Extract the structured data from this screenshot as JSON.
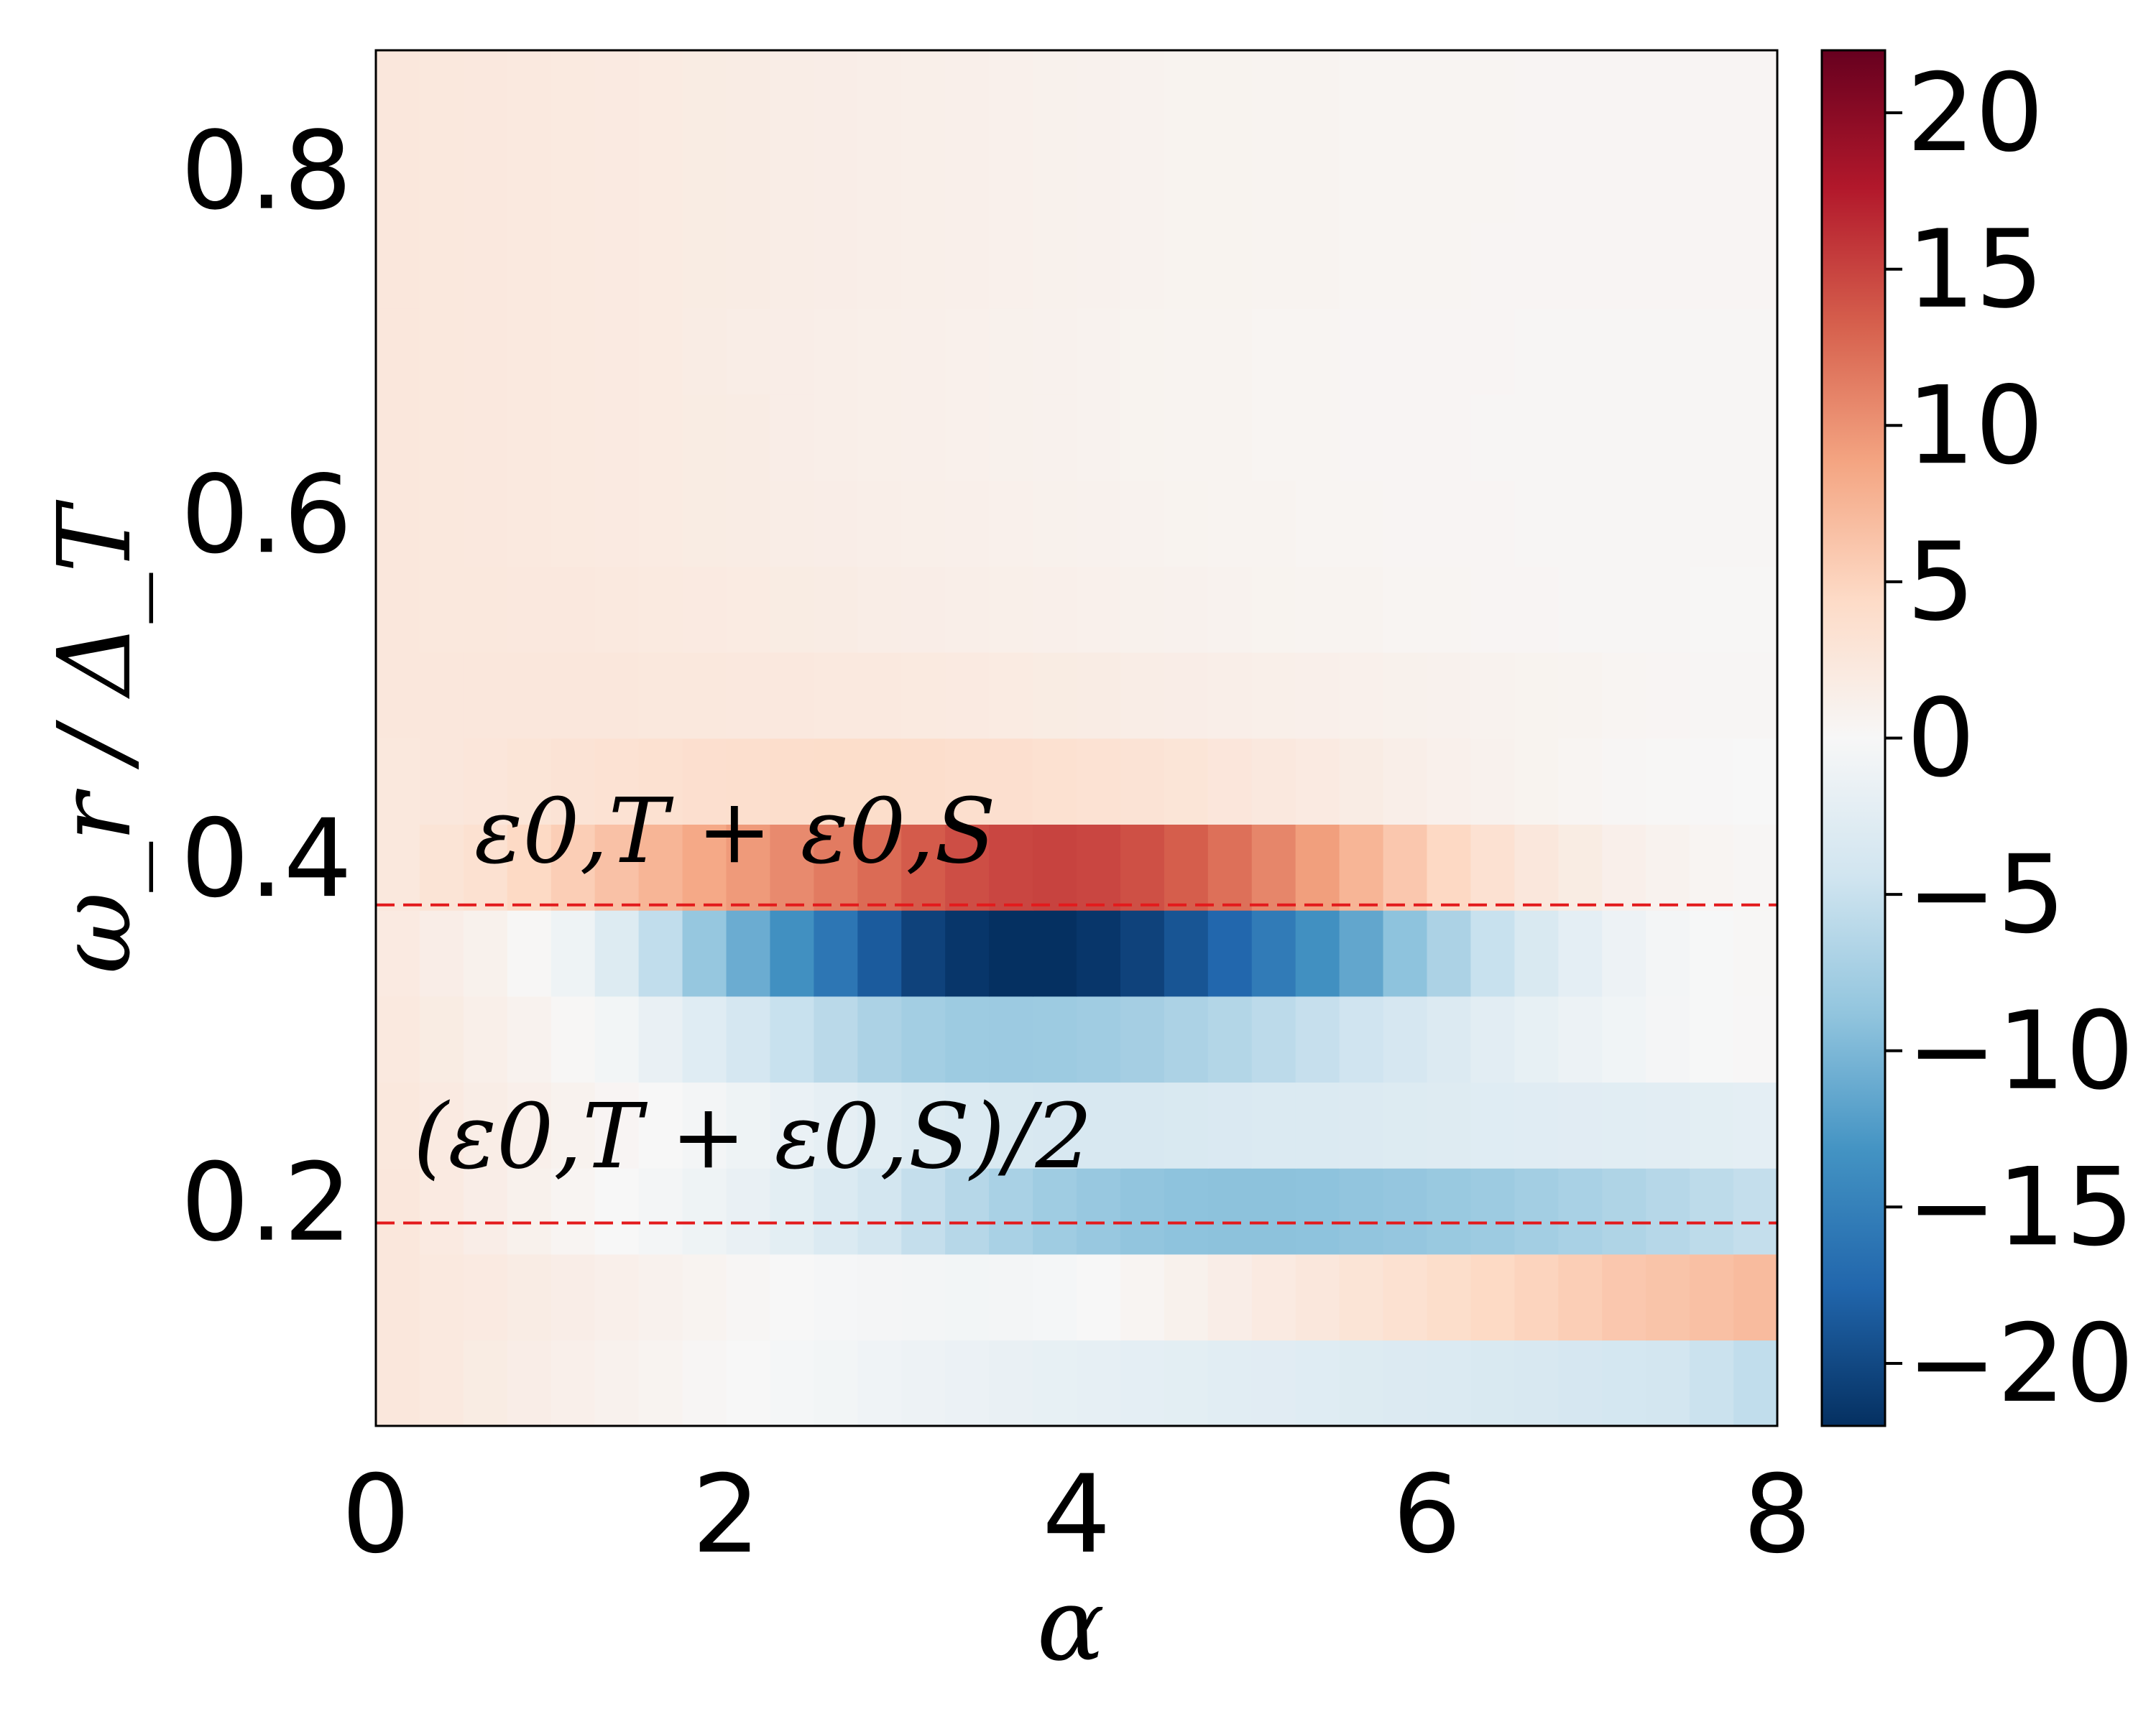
{
  "chart_data": {
    "type": "heatmap",
    "title": "",
    "xlabel": "α",
    "ylabel": "ω_r / Δ_T",
    "xlim": [
      0,
      8
    ],
    "ylim": [
      0.07,
      0.87
    ],
    "x_ticks": [
      "0",
      "2",
      "4",
      "6",
      "8"
    ],
    "y_ticks": [
      "0.2",
      "0.4",
      "0.6",
      "0.8"
    ],
    "colorbar": {
      "colormap": "RdBu_r",
      "range": [
        -22,
        22
      ],
      "ticks": [
        "−20",
        "−15",
        "−10",
        "−5",
        "0",
        "5",
        "10",
        "15",
        "20"
      ]
    },
    "grid": false,
    "x": [
      0.125,
      0.375,
      0.625,
      0.875,
      1.125,
      1.375,
      1.625,
      1.875,
      2.125,
      2.375,
      2.625,
      2.875,
      3.125,
      3.375,
      3.625,
      3.875,
      4.125,
      4.375,
      4.625,
      4.875,
      5.125,
      5.375,
      5.625,
      5.875,
      6.125,
      6.375,
      6.625,
      6.875,
      7.125,
      7.375,
      7.625,
      7.875
    ],
    "y": [
      0.095,
      0.145,
      0.195,
      0.245,
      0.295,
      0.345,
      0.395,
      0.445,
      0.495,
      0.545,
      0.595,
      0.645,
      0.695,
      0.745,
      0.795,
      0.845
    ],
    "z": [
      [
        2.5,
        2.2,
        1.8,
        1.5,
        1.2,
        0.9,
        0.6,
        0.3,
        0,
        -0.3,
        -0.6,
        -0.9,
        -1.2,
        -1.4,
        -1.6,
        -1.8,
        -2,
        -2.2,
        -2.3,
        -2.5,
        -2.6,
        -2.8,
        -3,
        -3.1,
        -3.3,
        -3.5,
        -3.6,
        -3.8,
        -4,
        -4.2,
        -4.8,
        -5.5
      ],
      [
        2.5,
        2.2,
        2,
        1.7,
        1.5,
        1.2,
        0.9,
        0.6,
        0.3,
        0,
        -0.2,
        -0.4,
        -0.5,
        -0.6,
        -0.5,
        -0.3,
        0,
        0.5,
        1,
        1.5,
        2,
        2.5,
        3,
        3.5,
        4,
        4.5,
        5,
        5.5,
        6,
        6.3,
        6.6,
        7
      ],
      [
        2.5,
        2,
        1.5,
        1,
        0.5,
        0,
        -0.5,
        -1,
        -1.6,
        -2.3,
        -3.2,
        -4.2,
        -5.3,
        -6.3,
        -7.2,
        -7.9,
        -8.4,
        -8.8,
        -9,
        -9.1,
        -9.1,
        -9,
        -8.8,
        -8.6,
        -8.3,
        -8,
        -7.6,
        -7.2,
        -6.8,
        -6.3,
        -5.8,
        -5.3
      ],
      [
        2.4,
        2,
        1.6,
        1.2,
        0.8,
        0.4,
        0,
        -0.5,
        -1,
        -1.5,
        -2,
        -2.5,
        -3,
        -3.3,
        -3.5,
        -3.6,
        -3.6,
        -3.6,
        -3.5,
        -3.4,
        -3.3,
        -3.2,
        -3.1,
        -3,
        -2.9,
        -2.8,
        -2.7,
        -2.6,
        -2.5,
        -2.4,
        -2.3,
        -2.2
      ],
      [
        2.2,
        1.8,
        1.3,
        0.8,
        0.2,
        -0.6,
        -1.6,
        -2.8,
        -3.9,
        -5,
        -6,
        -7,
        -7.6,
        -8,
        -8.1,
        -8,
        -7.8,
        -7.5,
        -7,
        -6.5,
        -5.9,
        -5.2,
        -4.5,
        -3.8,
        -3.1,
        -2.4,
        -1.8,
        -1.3,
        -0.8,
        -0.4,
        -0.1,
        0.1
      ],
      [
        2,
        1.5,
        1,
        0.2,
        -1,
        -3,
        -5.5,
        -8.5,
        -11,
        -13.5,
        -16,
        -18.5,
        -20.5,
        -21.5,
        -22,
        -22,
        -21.5,
        -20.5,
        -19,
        -17.5,
        -15.5,
        -13.5,
        -11.5,
        -9,
        -7,
        -5,
        -3.5,
        -2.2,
        -1.2,
        -0.5,
        -0.1,
        0.2
      ],
      [
        2.4,
        3,
        3.5,
        4.5,
        5.5,
        6.5,
        7.5,
        8.5,
        9.5,
        10.5,
        11.5,
        12.5,
        13.5,
        14.3,
        14.8,
        15,
        14.8,
        14.2,
        13.3,
        12.2,
        10.8,
        9.2,
        7.5,
        6,
        4.6,
        3.4,
        2.5,
        1.8,
        1.2,
        0.8,
        0.5,
        0.3
      ],
      [
        2.4,
        2.5,
        2.7,
        2.9,
        3.1,
        3.3,
        3.5,
        3.7,
        3.8,
        3.9,
        4,
        4,
        3.9,
        3.8,
        3.7,
        3.5,
        3.3,
        3.1,
        2.9,
        2.6,
        2.3,
        2,
        1.7,
        1.4,
        1.1,
        0.9,
        0.7,
        0.5,
        0.3,
        0.2,
        0.1,
        0
      ],
      [
        2.5,
        2.5,
        2.5,
        2.5,
        2.5,
        2.5,
        2.4,
        2.4,
        2.3,
        2.3,
        2.2,
        2.2,
        2.1,
        2,
        1.9,
        1.8,
        1.7,
        1.6,
        1.5,
        1.4,
        1.3,
        1.2,
        1.1,
        1,
        0.9,
        0.8,
        0.7,
        0.6,
        0.5,
        0.4,
        0.3,
        0.3
      ],
      [
        2.5,
        2.4,
        2.4,
        2.3,
        2.3,
        2.2,
        2.1,
        2,
        1.9,
        1.8,
        1.7,
        1.6,
        1.5,
        1.4,
        1.3,
        1.2,
        1.1,
        1,
        0.9,
        0.8,
        0.7,
        0.6,
        0.6,
        0.5,
        0.5,
        0.4,
        0.4,
        0.3,
        0.3,
        0.3,
        0.2,
        0.2
      ],
      [
        2.5,
        2.4,
        2.3,
        2.2,
        2.1,
        2,
        1.9,
        1.8,
        1.7,
        1.6,
        1.5,
        1.4,
        1.3,
        1.2,
        1.1,
        1,
        0.9,
        0.8,
        0.7,
        0.6,
        0.6,
        0.5,
        0.5,
        0.4,
        0.4,
        0.4,
        0.3,
        0.3,
        0.3,
        0.3,
        0.3,
        0.3
      ],
      [
        2.5,
        2.4,
        2.3,
        2.2,
        2.1,
        2,
        1.9,
        1.8,
        1.7,
        1.5,
        1.4,
        1.3,
        1.2,
        1.1,
        1,
        0.9,
        0.8,
        0.7,
        0.6,
        0.6,
        0.5,
        0.5,
        0.4,
        0.4,
        0.4,
        0.3,
        0.3,
        0.3,
        0.3,
        0.3,
        0.3,
        0.3
      ],
      [
        2.5,
        2.4,
        2.3,
        2.2,
        2.1,
        2,
        1.9,
        1.7,
        1.6,
        1.5,
        1.4,
        1.3,
        1.2,
        1.1,
        1,
        0.9,
        0.8,
        0.7,
        0.6,
        0.6,
        0.5,
        0.5,
        0.4,
        0.4,
        0.4,
        0.4,
        0.3,
        0.3,
        0.3,
        0.3,
        0.3,
        0.3
      ],
      [
        2.5,
        2.4,
        2.3,
        2.2,
        2.1,
        2,
        1.9,
        1.8,
        1.7,
        1.6,
        1.5,
        1.4,
        1.3,
        1.2,
        1.1,
        1,
        0.9,
        0.8,
        0.7,
        0.7,
        0.6,
        0.6,
        0.5,
        0.5,
        0.5,
        0.4,
        0.4,
        0.4,
        0.4,
        0.4,
        0.4,
        0.4
      ],
      [
        2.5,
        2.4,
        2.3,
        2.2,
        2.1,
        2,
        1.9,
        1.8,
        1.7,
        1.6,
        1.5,
        1.4,
        1.3,
        1.2,
        1.1,
        1,
        0.9,
        0.8,
        0.7,
        0.7,
        0.6,
        0.6,
        0.5,
        0.5,
        0.5,
        0.5,
        0.4,
        0.4,
        0.4,
        0.4,
        0.4,
        0.4
      ],
      [
        2.5,
        2.4,
        2.3,
        2.2,
        2.1,
        2,
        1.9,
        1.8,
        1.7,
        1.6,
        1.5,
        1.4,
        1.3,
        1.2,
        1.1,
        1,
        0.9,
        0.8,
        0.7,
        0.7,
        0.6,
        0.6,
        0.5,
        0.5,
        0.5,
        0.5,
        0.4,
        0.4,
        0.4,
        0.4,
        0.4,
        0.4
      ]
    ],
    "reference_lines": [
      {
        "y": 0.373,
        "style": "dashed",
        "color": "#e31a1c"
      },
      {
        "y": 0.188,
        "style": "dashed",
        "color": "#e31a1c"
      }
    ],
    "annotations": [
      {
        "label": "ε0,T + ε0,S"
      },
      {
        "label": "(ε0,T + ε0,S)/2"
      }
    ]
  }
}
